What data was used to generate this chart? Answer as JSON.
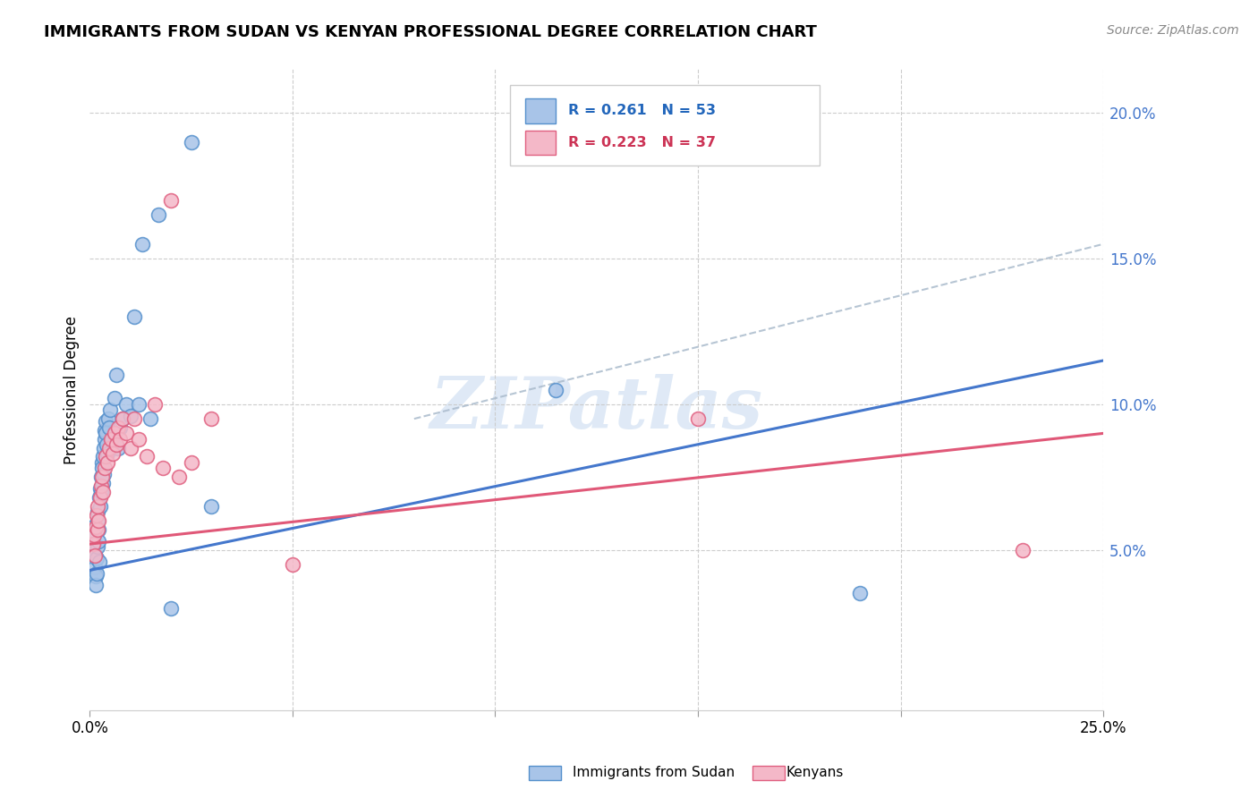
{
  "title": "IMMIGRANTS FROM SUDAN VS KENYAN PROFESSIONAL DEGREE CORRELATION CHART",
  "source": "Source: ZipAtlas.com",
  "ylabel": "Professional Degree",
  "legend1_label": "Immigrants from Sudan",
  "legend2_label": "Kenyans",
  "R1": "0.261",
  "N1": "53",
  "R2": "0.223",
  "N2": "37",
  "color_blue_fill": "#A8C4E8",
  "color_blue_edge": "#5590CC",
  "color_pink_fill": "#F4B8C8",
  "color_pink_edge": "#E06080",
  "color_line_blue": "#4477CC",
  "color_line_pink": "#E05878",
  "color_dashed": "#AABBCC",
  "watermark": "ZIPatlas",
  "xlim": [
    0.0,
    0.25
  ],
  "ylim": [
    -0.005,
    0.215
  ],
  "yticks": [
    0.05,
    0.1,
    0.15,
    0.2
  ],
  "ytick_labels": [
    "5.0%",
    "10.0%",
    "15.0%",
    "20.0%"
  ],
  "xtick_vals": [
    0.0,
    0.05,
    0.1,
    0.15,
    0.2,
    0.25
  ],
  "sudan_x": [
    0.0008,
    0.001,
    0.0011,
    0.0012,
    0.0013,
    0.0014,
    0.0015,
    0.0016,
    0.0017,
    0.0018,
    0.0019,
    0.002,
    0.0021,
    0.0022,
    0.0023,
    0.0024,
    0.0025,
    0.0026,
    0.0027,
    0.0028,
    0.003,
    0.0031,
    0.0032,
    0.0033,
    0.0034,
    0.0035,
    0.0036,
    0.0037,
    0.0038,
    0.004,
    0.0042,
    0.0044,
    0.0046,
    0.0048,
    0.005,
    0.0055,
    0.006,
    0.0065,
    0.007,
    0.0075,
    0.008,
    0.009,
    0.01,
    0.011,
    0.012,
    0.013,
    0.015,
    0.017,
    0.02,
    0.025,
    0.03,
    0.115,
    0.19
  ],
  "sudan_y": [
    0.058,
    0.055,
    0.052,
    0.048,
    0.044,
    0.041,
    0.038,
    0.042,
    0.047,
    0.051,
    0.06,
    0.063,
    0.057,
    0.053,
    0.046,
    0.068,
    0.065,
    0.071,
    0.075,
    0.07,
    0.08,
    0.078,
    0.073,
    0.082,
    0.076,
    0.085,
    0.088,
    0.091,
    0.094,
    0.09,
    0.086,
    0.083,
    0.095,
    0.092,
    0.098,
    0.088,
    0.102,
    0.11,
    0.085,
    0.092,
    0.095,
    0.1,
    0.096,
    0.13,
    0.1,
    0.155,
    0.095,
    0.165,
    0.03,
    0.19,
    0.065,
    0.105,
    0.035
  ],
  "kenyan_x": [
    0.0008,
    0.001,
    0.0012,
    0.0014,
    0.0016,
    0.0018,
    0.002,
    0.0022,
    0.0025,
    0.0028,
    0.003,
    0.0033,
    0.0036,
    0.004,
    0.0044,
    0.0048,
    0.0052,
    0.0056,
    0.006,
    0.0065,
    0.007,
    0.0075,
    0.008,
    0.009,
    0.01,
    0.011,
    0.012,
    0.014,
    0.016,
    0.018,
    0.02,
    0.022,
    0.025,
    0.03,
    0.05,
    0.23,
    0.15
  ],
  "kenyan_y": [
    0.052,
    0.055,
    0.048,
    0.058,
    0.062,
    0.057,
    0.065,
    0.06,
    0.068,
    0.072,
    0.075,
    0.07,
    0.078,
    0.082,
    0.08,
    0.085,
    0.088,
    0.083,
    0.09,
    0.086,
    0.092,
    0.088,
    0.095,
    0.09,
    0.085,
    0.095,
    0.088,
    0.082,
    0.1,
    0.078,
    0.17,
    0.075,
    0.08,
    0.095,
    0.045,
    0.05,
    0.095
  ],
  "blue_line_x0": 0.0,
  "blue_line_y0": 0.043,
  "blue_line_x1": 0.25,
  "blue_line_y1": 0.115,
  "pink_line_x0": 0.0,
  "pink_line_y0": 0.052,
  "pink_line_x1": 0.25,
  "pink_line_y1": 0.09,
  "dashed_line_x0": 0.08,
  "dashed_line_y0": 0.095,
  "dashed_line_x1": 0.25,
  "dashed_line_y1": 0.155
}
